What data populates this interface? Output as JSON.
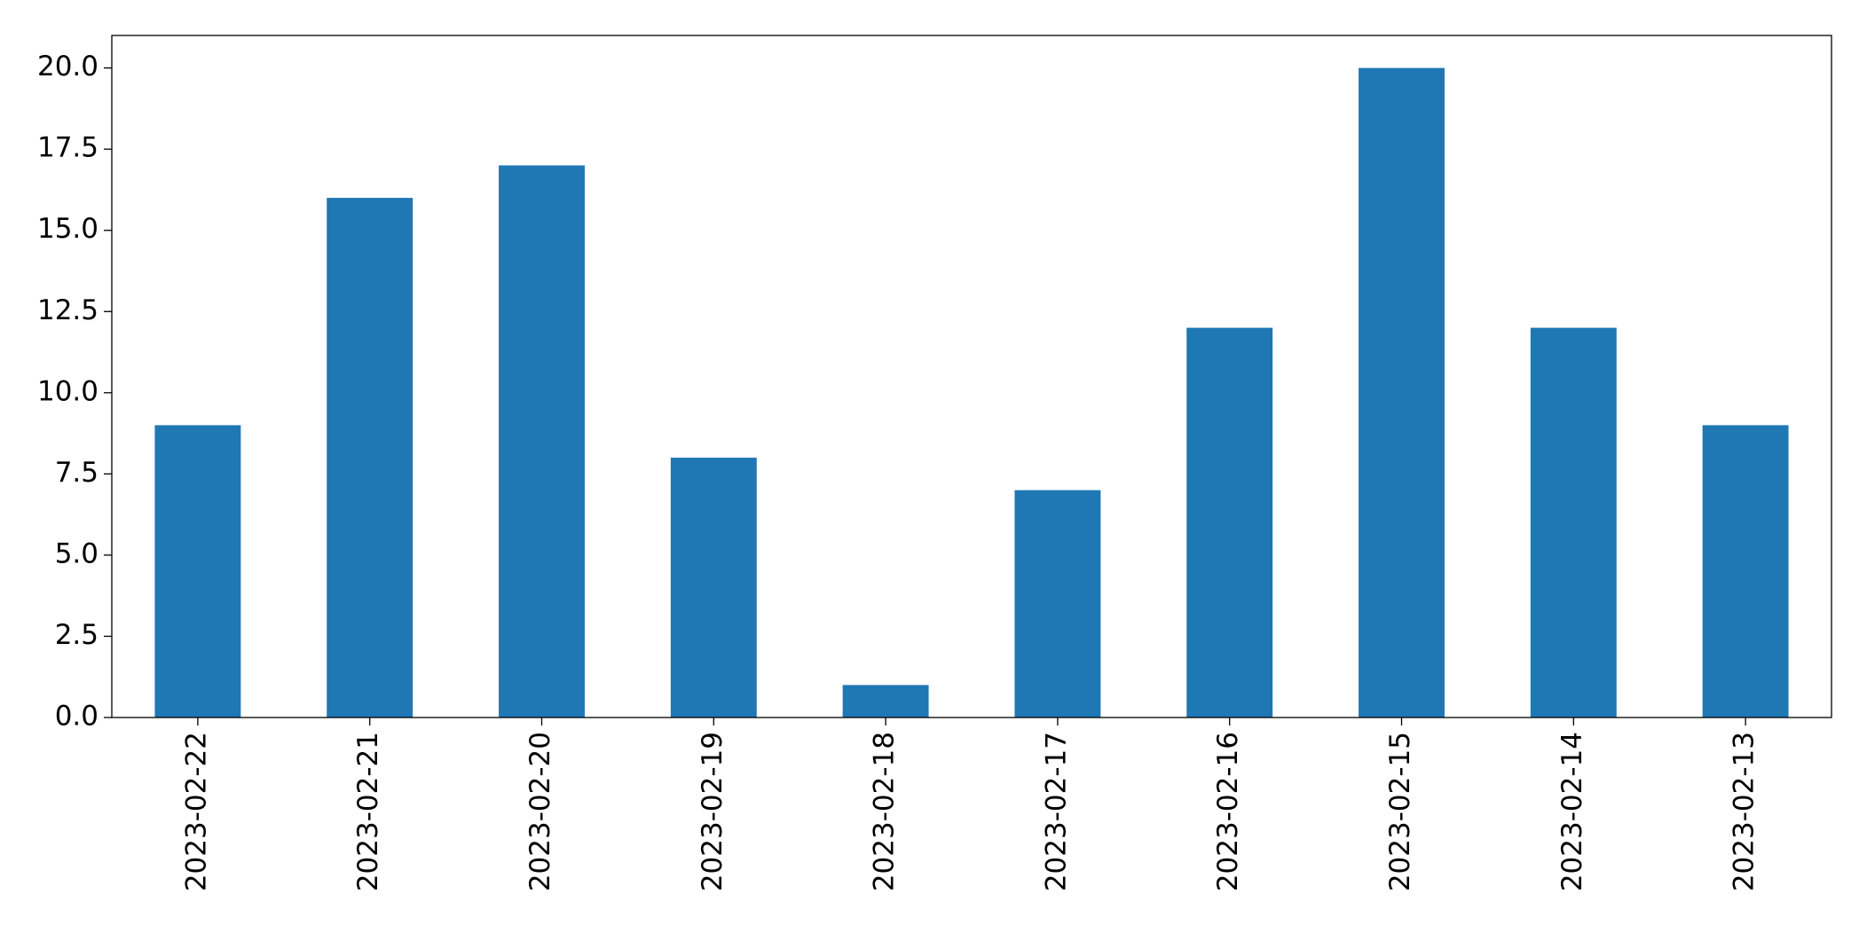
{
  "chart_data": {
    "type": "bar",
    "categories": [
      "2023-02-22",
      "2023-02-21",
      "2023-02-20",
      "2023-02-19",
      "2023-02-18",
      "2023-02-17",
      "2023-02-16",
      "2023-02-15",
      "2023-02-14",
      "2023-02-13"
    ],
    "values": [
      9,
      16,
      17,
      8,
      1,
      7,
      12,
      20,
      12,
      9
    ],
    "color": "#1f77b4",
    "ylim": [
      0,
      21
    ],
    "yticks": [
      {
        "value": 0,
        "label": "0.0"
      },
      2.5,
      {
        "value": 5,
        "label": "5.0"
      },
      7.5,
      {
        "value": 10,
        "label": "10.0"
      },
      12.5,
      {
        "value": 15,
        "label": "15.0"
      },
      17.5,
      {
        "value": 20,
        "label": "20.0"
      }
    ],
    "grid": false
  }
}
